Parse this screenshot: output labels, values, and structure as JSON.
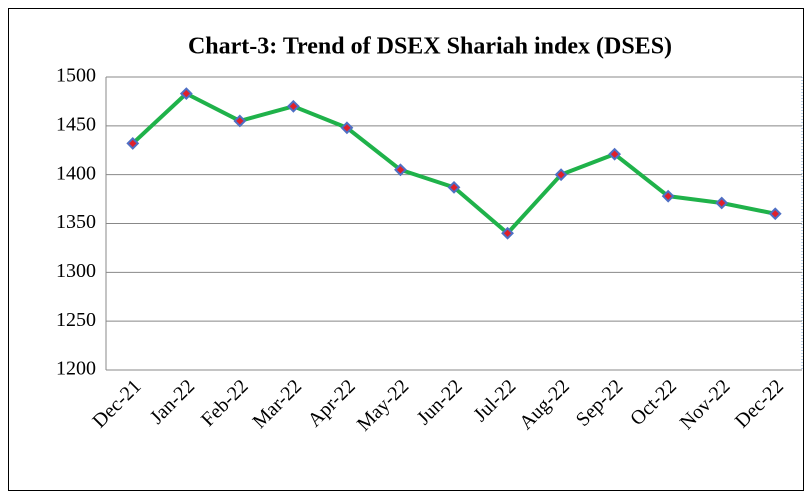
{
  "chart_data": {
    "type": "line",
    "title": "Chart-3: Trend of  DSEX Shariah index (DSES)",
    "categories": [
      "Dec-21",
      "Jan-22",
      "Feb-22",
      "Mar-22",
      "Apr-22",
      "May-22",
      "Jun-22",
      "Jul-22",
      "Aug-22",
      "Sep-22",
      "Oct-22",
      "Nov-22",
      "Dec-22"
    ],
    "values": [
      1432,
      1483,
      1455,
      1470,
      1448,
      1405,
      1387,
      1340,
      1400,
      1421,
      1378,
      1371,
      1360
    ],
    "color": "#1fb24a",
    "marker_color": "#4f6fc4",
    "marker_center_color": "#e0202a",
    "ylim": [
      1200,
      1500
    ],
    "yticks": [
      1200,
      1250,
      1300,
      1350,
      1400,
      1450,
      1500
    ],
    "grid": true
  }
}
